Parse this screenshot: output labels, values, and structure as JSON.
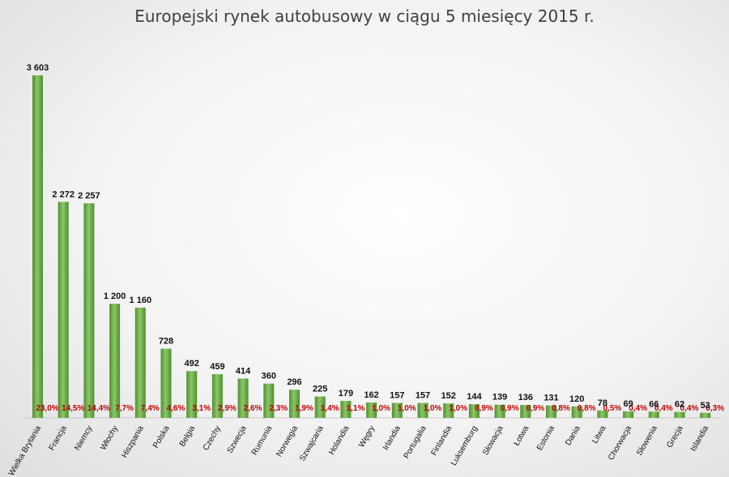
{
  "chart_data": {
    "type": "bar",
    "title": "Europejski rynek autobusowy w ciągu 5 miesięcy 2015 r.",
    "categories": [
      "Wielka Brytania",
      "Francja",
      "Niemcy",
      "Włochy",
      "Hiszpania",
      "Polska",
      "Belgia",
      "Czechy",
      "Szwecja",
      "Rumunia",
      "Norwegia",
      "Szwajcaria",
      "Holandia",
      "Węgry",
      "Irlandia",
      "Portugalia",
      "Finlandia",
      "Luksemburg",
      "Słowacja",
      "Łotwa",
      "Estonia",
      "Dania",
      "Litwa",
      "Chorwacja",
      "Słowenia",
      "Grecja",
      "Islandia"
    ],
    "values": [
      3603,
      2272,
      2257,
      1200,
      1160,
      728,
      492,
      459,
      414,
      360,
      296,
      225,
      179,
      162,
      157,
      157,
      152,
      144,
      139,
      136,
      131,
      120,
      78,
      69,
      66,
      62,
      53
    ],
    "value_labels": [
      "3 603",
      "2 272",
      "2 257",
      "1 200",
      "1 160",
      "728",
      "492",
      "459",
      "414",
      "360",
      "296",
      "225",
      "179",
      "162",
      "157",
      "157",
      "152",
      "144",
      "139",
      "136",
      "131",
      "120",
      "78",
      "69",
      "66",
      "62",
      "53"
    ],
    "percent_labels": [
      "23,0%",
      "14,5%",
      "14,4%",
      "7,7%",
      "7,4%",
      "4,6%",
      "3,1%",
      "2,9%",
      "2,6%",
      "2,3%",
      "1,9%",
      "1,4%",
      "1,1%",
      "1,0%",
      "1,0%",
      "1,0%",
      "1,0%",
      "0,9%",
      "0,9%",
      "0,9%",
      "0,8%",
      "0,8%",
      "0,5%",
      "0,4%",
      "0,4%",
      "0,4%",
      "0,3%"
    ],
    "ylim": [
      0,
      3603
    ],
    "grid": false,
    "legend": "none",
    "colors": {
      "bar_light": "#8cc66a",
      "bar_dark": "#4e8f2c",
      "value": "#111111",
      "percent": "#c00000"
    }
  }
}
